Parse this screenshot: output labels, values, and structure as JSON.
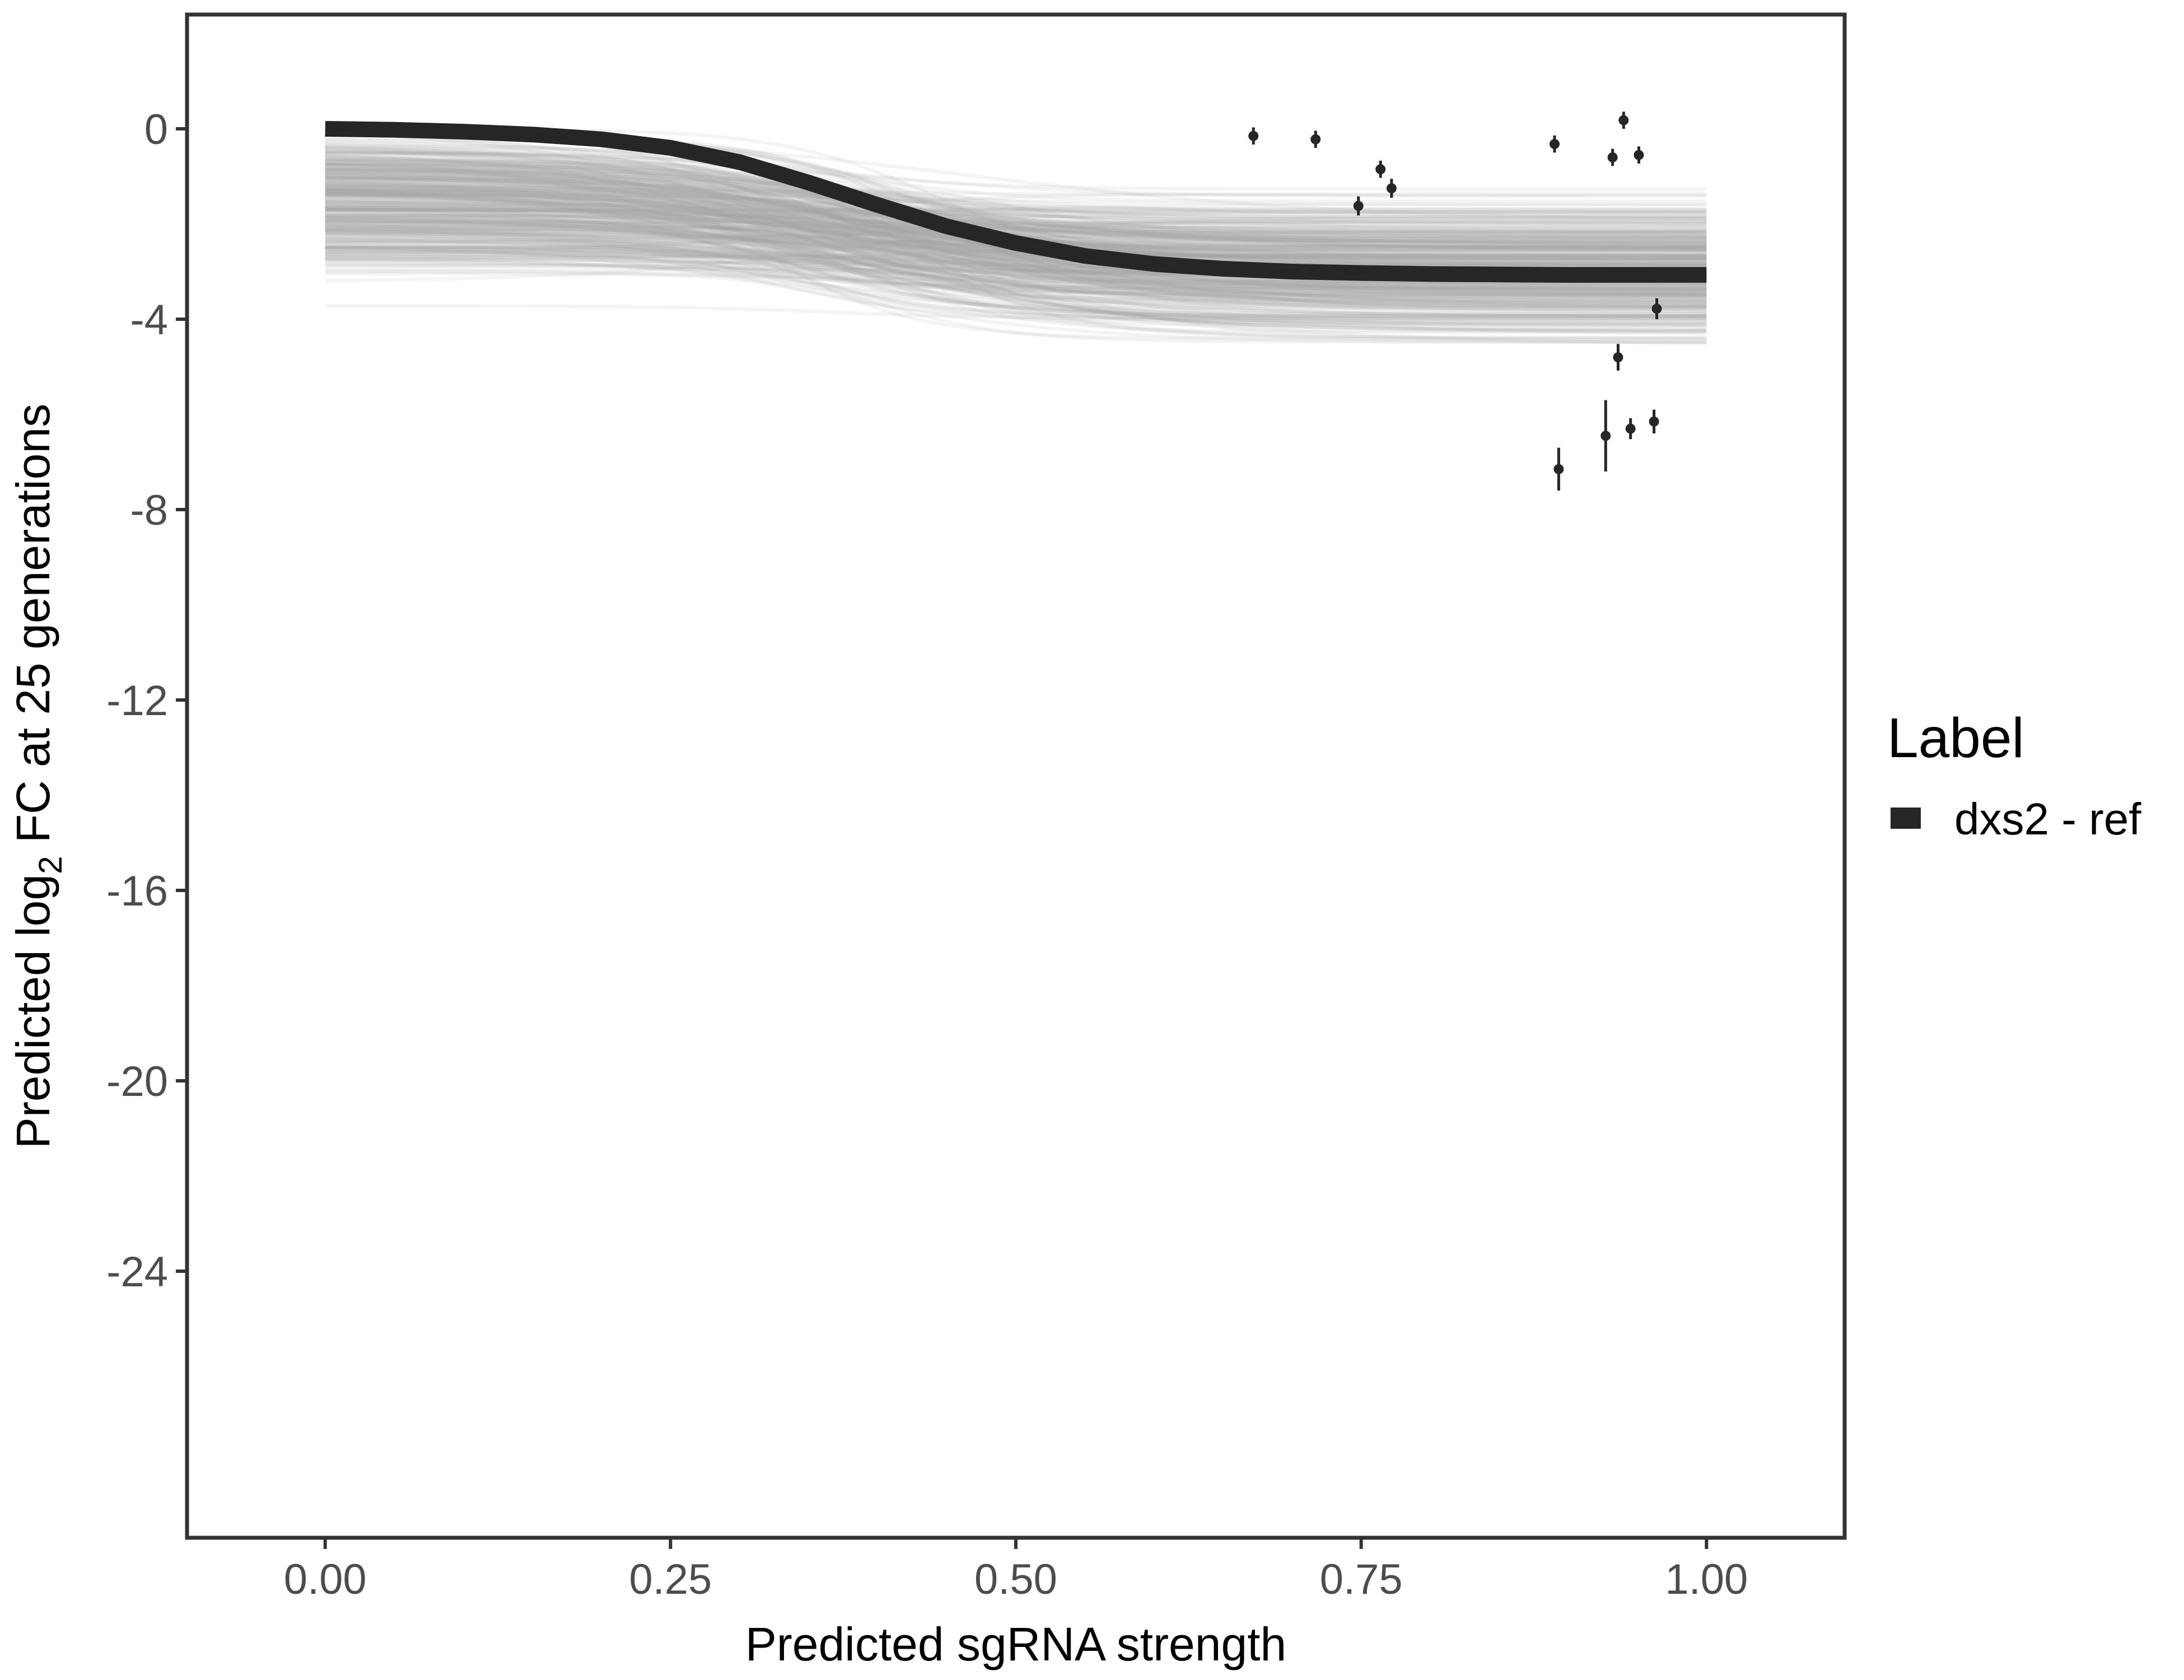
{
  "chart_data": {
    "type": "line",
    "xlabel": "Predicted sgRNA strength",
    "ylabel_parts": [
      "Predicted  log",
      "2",
      " FC at 25 generations"
    ],
    "xlim": [
      -0.1,
      1.1
    ],
    "ylim": [
      -29.6,
      2.4
    ],
    "x_ticks": [
      0,
      0.25,
      0.5,
      0.75,
      1.0
    ],
    "x_tick_labels": [
      "0.00",
      "0.25",
      "0.50",
      "0.75",
      "1.00"
    ],
    "y_ticks": [
      0,
      -4,
      -8,
      -12,
      -16,
      -20,
      -24
    ],
    "y_tick_labels": [
      "0",
      "-4",
      "-8",
      "-12",
      "-16",
      "-20",
      "-24"
    ],
    "grid": false,
    "legend": {
      "title": "Label",
      "position": "right",
      "entries": [
        {
          "label": "dxs2 - ref",
          "color": "#262626"
        }
      ]
    },
    "fit_curve": {
      "name": "dxs2 - ref",
      "color": "#262626",
      "x": [
        0.0,
        0.05,
        0.1,
        0.15,
        0.2,
        0.25,
        0.3,
        0.35,
        0.4,
        0.45,
        0.5,
        0.55,
        0.6,
        0.65,
        0.7,
        0.75,
        0.8,
        0.85,
        0.9,
        0.95,
        1.0
      ],
      "y": [
        0.0,
        -0.02,
        -0.06,
        -0.12,
        -0.22,
        -0.4,
        -0.7,
        -1.13,
        -1.6,
        -2.05,
        -2.4,
        -2.67,
        -2.84,
        -2.94,
        -3.0,
        -3.03,
        -3.05,
        -3.06,
        -3.07,
        -3.07,
        -3.07
      ]
    },
    "posterior_draws": {
      "count": 360,
      "color": "#a6a6a6"
    },
    "points": [
      {
        "x": 0.672,
        "y": -0.15,
        "err": 0.18
      },
      {
        "x": 0.717,
        "y": -0.22,
        "err": 0.18
      },
      {
        "x": 0.748,
        "y": -1.62,
        "err": 0.2
      },
      {
        "x": 0.764,
        "y": -0.85,
        "err": 0.18
      },
      {
        "x": 0.772,
        "y": -1.25,
        "err": 0.2
      },
      {
        "x": 0.89,
        "y": -0.32,
        "err": 0.18
      },
      {
        "x": 0.893,
        "y": -7.15,
        "err": 0.45
      },
      {
        "x": 0.927,
        "y": -6.45,
        "err": 0.75
      },
      {
        "x": 0.932,
        "y": -0.6,
        "err": 0.18
      },
      {
        "x": 0.936,
        "y": -4.8,
        "err": 0.28
      },
      {
        "x": 0.94,
        "y": 0.18,
        "err": 0.18
      },
      {
        "x": 0.945,
        "y": -6.3,
        "err": 0.22
      },
      {
        "x": 0.951,
        "y": -0.55,
        "err": 0.18
      },
      {
        "x": 0.962,
        "y": -6.15,
        "err": 0.25
      },
      {
        "x": 0.964,
        "y": -3.78,
        "err": 0.22
      }
    ]
  }
}
